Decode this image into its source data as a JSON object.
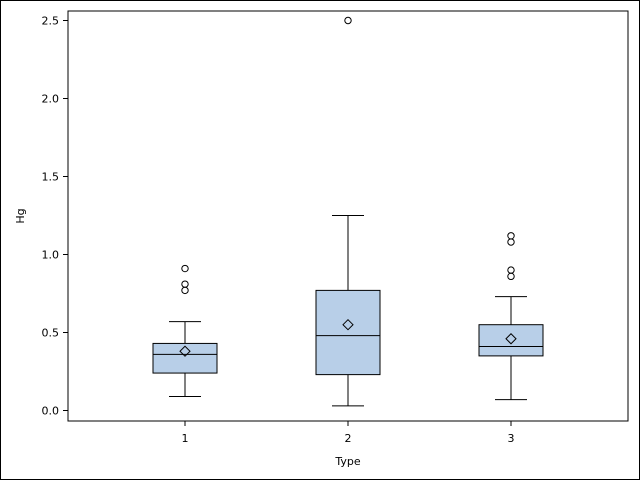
{
  "chart_data": {
    "type": "box",
    "xlabel": "Type",
    "ylabel": "Hg",
    "ylim": [
      -0.05,
      2.62
    ],
    "yticks": [
      "0.0",
      "0.5",
      "1.0",
      "1.5",
      "2.0",
      "2.5"
    ],
    "categories": [
      "1",
      "2",
      "3"
    ],
    "boxes": [
      {
        "category": "1",
        "whisker_low": 0.09,
        "q1": 0.24,
        "median": 0.36,
        "q3": 0.43,
        "whisker_high": 0.57,
        "mean": 0.38,
        "outliers": [
          0.77,
          0.81,
          0.91
        ]
      },
      {
        "category": "2",
        "whisker_low": 0.03,
        "q1": 0.23,
        "median": 0.48,
        "q3": 0.77,
        "whisker_high": 1.25,
        "mean": 0.55,
        "outliers": [
          2.5
        ]
      },
      {
        "category": "3",
        "whisker_low": 0.07,
        "q1": 0.35,
        "median": 0.41,
        "q3": 0.55,
        "whisker_high": 0.73,
        "mean": 0.46,
        "outliers": [
          0.86,
          0.9,
          1.08,
          1.12
        ]
      }
    ],
    "box_fill": "#b8cfe8",
    "grid": false
  }
}
